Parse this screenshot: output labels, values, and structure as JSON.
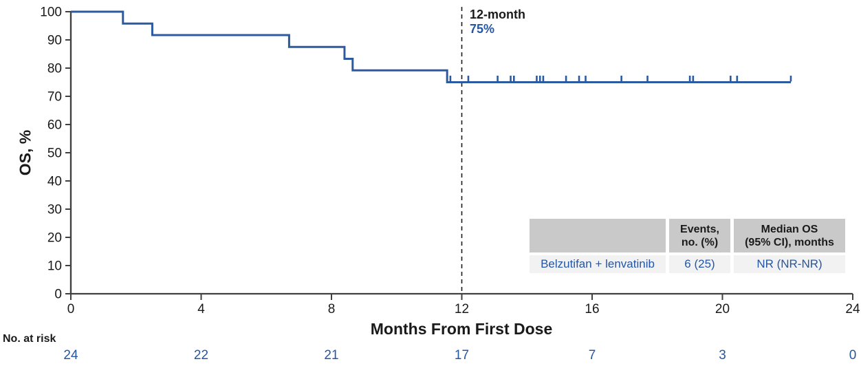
{
  "chart_data": {
    "type": "line",
    "subtype": "kaplan-meier-step",
    "title": "",
    "xlabel": "Months From First Dose",
    "ylabel": "OS, %",
    "xlim": [
      0,
      24
    ],
    "ylim": [
      0,
      100
    ],
    "xticks": [
      0,
      4,
      8,
      12,
      16,
      20,
      24
    ],
    "yticks": [
      0,
      10,
      20,
      30,
      40,
      50,
      60,
      70,
      80,
      90,
      100
    ],
    "grid": false,
    "legend": "none",
    "series": [
      {
        "name": "Belzutifan + lenvatinib",
        "steps": [
          [
            0,
            100
          ],
          [
            1.6,
            95.8
          ],
          [
            2.5,
            91.7
          ],
          [
            6.7,
            87.5
          ],
          [
            8.4,
            83.3
          ],
          [
            8.65,
            79.2
          ],
          [
            11.55,
            75.0
          ]
        ],
        "end_x": 22.1,
        "censor_marks": [
          11.65,
          12.2,
          13.1,
          13.5,
          13.6,
          14.3,
          14.4,
          14.5,
          15.2,
          15.6,
          15.8,
          16.9,
          17.7,
          19.0,
          19.1,
          20.25,
          20.45,
          22.1
        ]
      }
    ],
    "reference_line": {
      "x": 12,
      "style": "dashed"
    },
    "annotation": {
      "label": "12-month",
      "value": "75%"
    }
  },
  "summary_table": {
    "col1_header": "",
    "col2_header": [
      "Events,",
      "no. (%)"
    ],
    "col3_header": [
      "Median OS",
      "(95% CI), months"
    ],
    "row": {
      "name": "Belzutifan + lenvatinib",
      "events": "6 (25)",
      "median_os": "NR (NR-NR)"
    }
  },
  "risk_table": {
    "label": "No. at risk",
    "values": [
      "24",
      "22",
      "21",
      "17",
      "7",
      "3",
      "0"
    ]
  },
  "colors": {
    "curve": "#2c5aa0",
    "accent_text": "#2456a4",
    "axis": "#404040",
    "text": "#1a1a1a",
    "table_header_bg": "#c9c9c9",
    "table_row_bg": "#f2f2f2",
    "reference_line": "#1a1a1a"
  }
}
